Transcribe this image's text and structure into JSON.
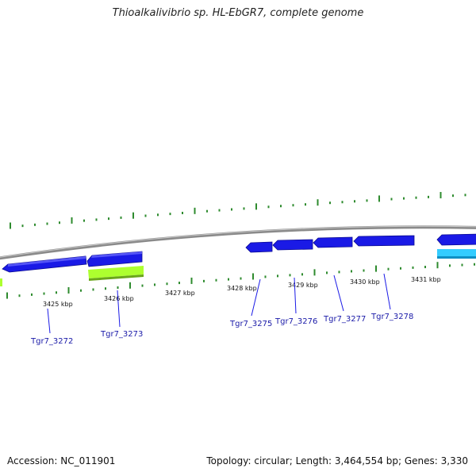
{
  "title": "Thioalkalivibrio sp. HL-EbGR7, complete genome",
  "footer": {
    "accession": "Accession: NC_011901",
    "summary": "Topology: circular; Length: 3,464,554 bp; Genes: 3,330"
  },
  "colors": {
    "backbone": "#8a8a8a",
    "tick_green": "#2e8b2e",
    "gene_blue": "#1a1ae6",
    "gene_green": "#adff2f",
    "gene_cyan": "#33ccff",
    "label_blue": "#1a1aa8"
  },
  "ruler_labels": [
    "3425 kbp",
    "3426 kbp",
    "3427 kbp",
    "3428 kbp",
    "3429 kbp",
    "3430 kbp",
    "3431 kbp"
  ],
  "gene_labels": [
    "Tgr7_3272",
    "Tgr7_3273",
    "Tgr7_3275",
    "Tgr7_3276",
    "Tgr7_3277",
    "Tgr7_3278"
  ]
}
